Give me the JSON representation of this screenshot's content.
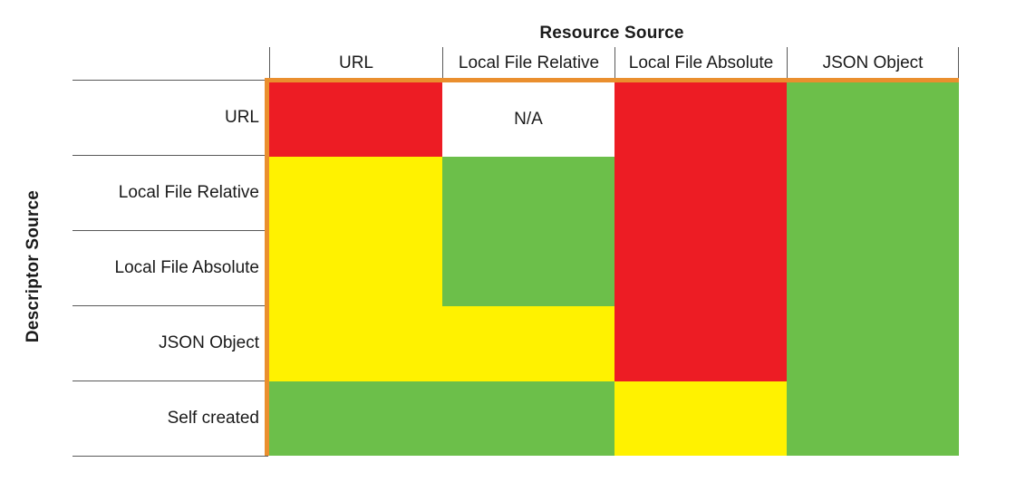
{
  "chart_data": {
    "type": "heatmap",
    "title": "Resource Source",
    "y_axis_label": "Descriptor Source",
    "columns": [
      "URL",
      "Local File Relative",
      "Local File Absolute",
      "JSON Object"
    ],
    "rows": [
      "URL",
      "Local File Relative",
      "Local File Absolute",
      "JSON Object",
      "Self created"
    ],
    "cells": [
      [
        "red",
        "N/A",
        "red",
        "green"
      ],
      [
        "yellow",
        "green",
        "red",
        "green"
      ],
      [
        "yellow",
        "green",
        "red",
        "green"
      ],
      [
        "yellow",
        "yellow",
        "red",
        "green"
      ],
      [
        "green",
        "green",
        "yellow",
        "green"
      ]
    ],
    "na_label": "N/A",
    "legend_position": "none",
    "grid": "off",
    "colors": {
      "red": "#ED1C24",
      "yellow": "#FFF200",
      "green": "#6CBF4A",
      "N/A": "#FFFFFF",
      "axis_border": "#EA8F2E",
      "grid_line": "#595959"
    }
  }
}
